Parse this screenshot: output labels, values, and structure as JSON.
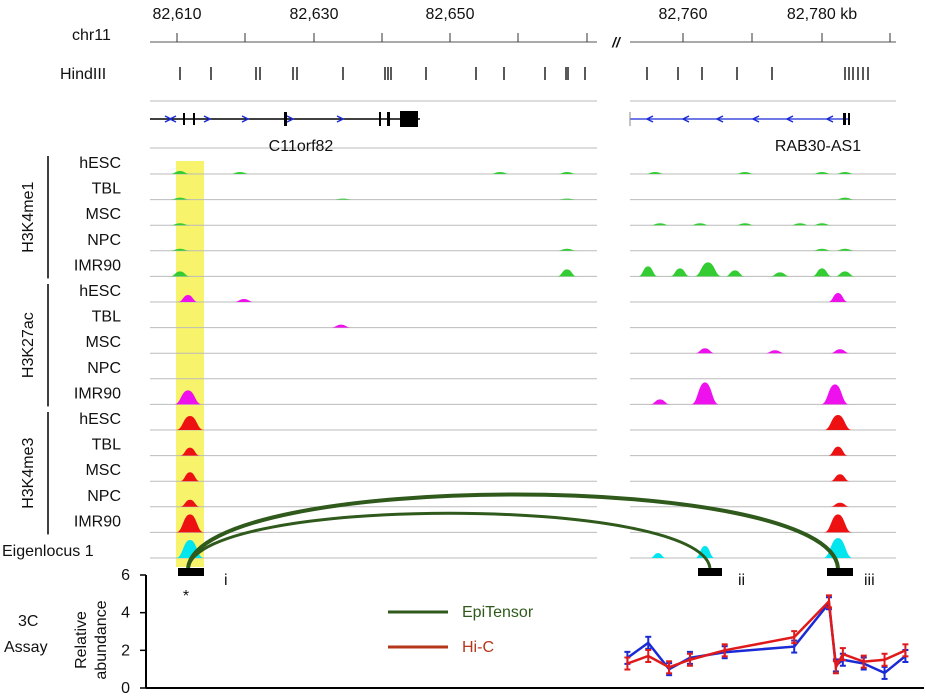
{
  "header": {
    "chrom": "chr11",
    "restriction_label": "HindIII",
    "ticks_left": [
      "82,610",
      "82,630",
      "82,650"
    ],
    "ticks_right": [
      "82,760",
      "82,780 kb"
    ],
    "break_mark": "//"
  },
  "genes": {
    "left": "C11orf82",
    "right": "RAB30-AS1"
  },
  "marks": [
    {
      "name": "H3K4me1",
      "color": "#33cc33",
      "samples": [
        "hESC",
        "TBL",
        "MSC",
        "NPC",
        "IMR90"
      ]
    },
    {
      "name": "H3K27ac",
      "color": "#ee11ee",
      "samples": [
        "hESC",
        "TBL",
        "MSC",
        "NPC",
        "IMR90"
      ]
    },
    {
      "name": "H3K4me3",
      "color": "#ee1111",
      "samples": [
        "hESC",
        "TBL",
        "MSC",
        "NPC",
        "IMR90"
      ]
    }
  ],
  "eigen": {
    "label": "Eigenlocus 1",
    "color": "#00e5ee"
  },
  "highlight_color": "#f7f36a",
  "regions": {
    "i": "i",
    "ii": "ii",
    "iii": "iii",
    "star": "*"
  },
  "assay": {
    "title_line1": "3C",
    "title_line2": "Assay",
    "ylabel_line1": "Relative",
    "ylabel_line2": "abundance",
    "yticks": [
      "0",
      "2",
      "4",
      "6"
    ],
    "ylim": [
      0,
      6
    ]
  },
  "legend": {
    "epi_label": "EpiTensor",
    "hic_label": "Hi-C",
    "epi_color": "#2f5a1c",
    "hic_color": "#b5361a"
  },
  "chart_data": {
    "type": "line",
    "ylabel": "Relative abundance",
    "ylim": [
      0,
      6
    ],
    "series": [
      {
        "color": "#1a2bd6",
        "x": [
          82752,
          82755,
          82758,
          82761,
          82766,
          82776,
          82781,
          82782,
          82783,
          82786,
          82789,
          82792
        ],
        "y": [
          1.6,
          2.4,
          1.0,
          1.6,
          1.9,
          2.2,
          4.5,
          1.2,
          1.5,
          1.3,
          0.8,
          1.7
        ]
      },
      {
        "color": "#e01a1a",
        "x": [
          82752,
          82755,
          82758,
          82761,
          82766,
          82776,
          82781,
          82782,
          82783,
          82786,
          82789,
          82792
        ],
        "y": [
          1.3,
          1.7,
          1.1,
          1.5,
          2.0,
          2.7,
          4.6,
          1.1,
          1.8,
          1.4,
          1.5,
          2.0
        ]
      }
    ]
  }
}
